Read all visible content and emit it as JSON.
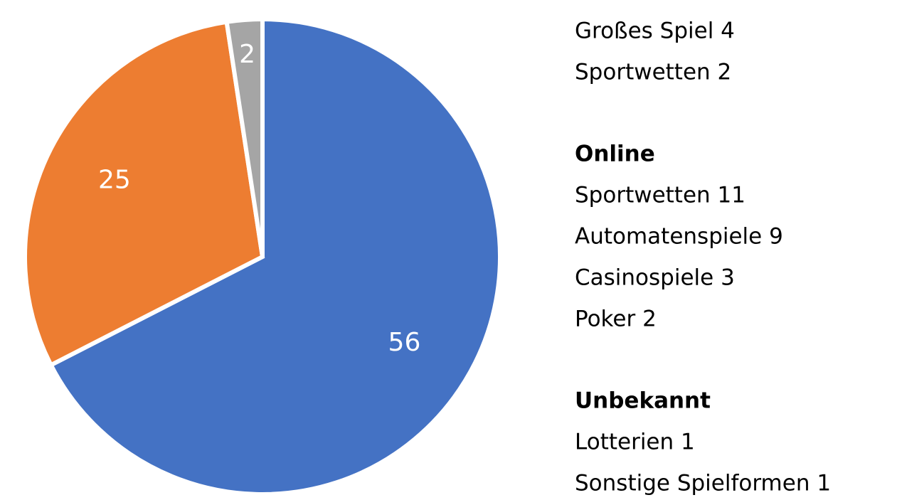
{
  "chart_data": {
    "type": "pie",
    "values": [
      56,
      25,
      2
    ],
    "colors": [
      "#4472c4",
      "#ed7d31",
      "#a5a5a5"
    ]
  },
  "side_text": {
    "groups": [
      {
        "items": [
          "Großes Spiel 4",
          "Sportwetten 2"
        ]
      },
      {
        "heading": "Online",
        "items": [
          "Sportwetten 11",
          "Automatenspiele 9",
          "Casinospiele 3",
          "Poker 2"
        ]
      },
      {
        "heading": "Unbekannt",
        "items": [
          "Lotterien 1",
          "Sonstige Spielformen 1"
        ]
      }
    ]
  }
}
